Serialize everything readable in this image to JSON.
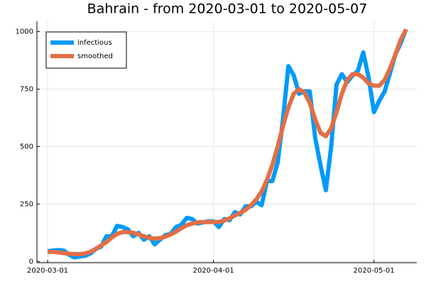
{
  "chart_data": {
    "type": "line",
    "title": "Bahrain - from 2020-03-01 to 2020-05-07",
    "x": [
      "2020-03-01",
      "2020-03-02",
      "2020-03-03",
      "2020-03-04",
      "2020-03-05",
      "2020-03-06",
      "2020-03-07",
      "2020-03-08",
      "2020-03-09",
      "2020-03-10",
      "2020-03-11",
      "2020-03-12",
      "2020-03-13",
      "2020-03-14",
      "2020-03-15",
      "2020-03-16",
      "2020-03-17",
      "2020-03-18",
      "2020-03-19",
      "2020-03-20",
      "2020-03-21",
      "2020-03-22",
      "2020-03-23",
      "2020-03-24",
      "2020-03-25",
      "2020-03-26",
      "2020-03-27",
      "2020-03-28",
      "2020-03-29",
      "2020-03-30",
      "2020-03-31",
      "2020-04-01",
      "2020-04-02",
      "2020-04-03",
      "2020-04-04",
      "2020-04-05",
      "2020-04-06",
      "2020-04-07",
      "2020-04-08",
      "2020-04-09",
      "2020-04-10",
      "2020-04-11",
      "2020-04-12",
      "2020-04-13",
      "2020-04-14",
      "2020-04-15",
      "2020-04-16",
      "2020-04-17",
      "2020-04-18",
      "2020-04-19",
      "2020-04-20",
      "2020-04-21",
      "2020-04-22",
      "2020-04-23",
      "2020-04-24",
      "2020-04-25",
      "2020-04-26",
      "2020-04-27",
      "2020-04-28",
      "2020-04-29",
      "2020-04-30",
      "2020-05-01",
      "2020-05-02",
      "2020-05-03",
      "2020-05-04",
      "2020-05-05",
      "2020-05-06",
      "2020-05-07"
    ],
    "series": [
      {
        "name": "infectious",
        "color": "#009af9",
        "values": [
          45,
          48,
          50,
          48,
          30,
          18,
          22,
          25,
          35,
          55,
          65,
          110,
          110,
          155,
          150,
          140,
          110,
          125,
          95,
          110,
          75,
          95,
          115,
          120,
          150,
          160,
          190,
          185,
          165,
          170,
          175,
          175,
          150,
          185,
          180,
          215,
          205,
          240,
          240,
          260,
          245,
          350,
          350,
          430,
          620,
          850,
          810,
          730,
          740,
          740,
          540,
          420,
          310,
          500,
          770,
          815,
          780,
          810,
          830,
          910,
          800,
          650,
          700,
          740,
          820,
          900,
          950,
          1010
        ]
      },
      {
        "name": "smoothed",
        "color": "#e26f46",
        "values": [
          42,
          42,
          40,
          37,
          34,
          32,
          32,
          35,
          42,
          55,
          70,
          85,
          105,
          120,
          128,
          128,
          125,
          118,
          110,
          103,
          100,
          102,
          108,
          118,
          130,
          145,
          158,
          165,
          170,
          172,
          172,
          172,
          172,
          178,
          188,
          200,
          212,
          225,
          245,
          270,
          305,
          355,
          420,
          500,
          590,
          670,
          730,
          750,
          735,
          690,
          620,
          560,
          545,
          580,
          650,
          730,
          790,
          815,
          815,
          800,
          775,
          765,
          765,
          790,
          840,
          900,
          965,
          1010
        ]
      }
    ],
    "xlim": [
      "2020-02-28",
      "2020-05-09"
    ],
    "xticks": [
      "2020-03-01",
      "2020-04-01",
      "2020-05-01"
    ],
    "ylim": [
      -5,
      1045
    ],
    "yticks": [
      0,
      250,
      500,
      750,
      1000
    ],
    "grid": true,
    "legend": "top-left"
  }
}
